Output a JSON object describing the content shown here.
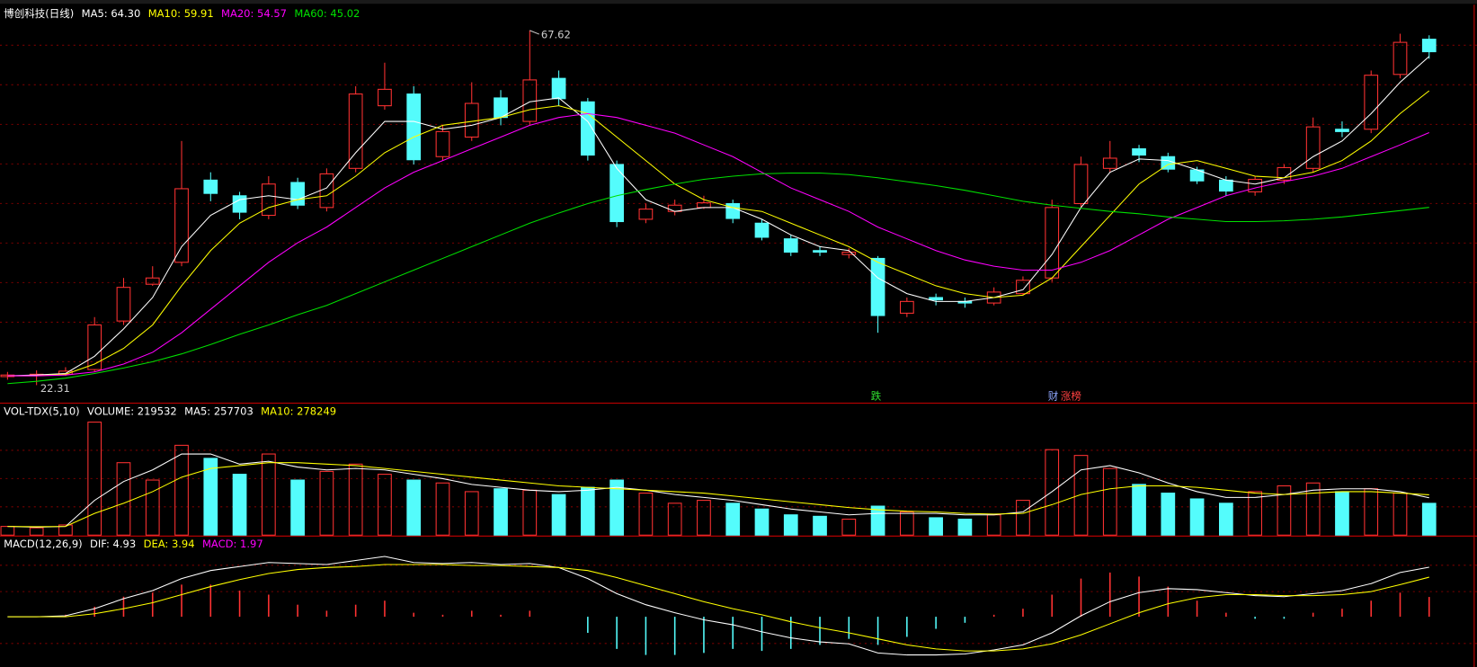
{
  "chart_data": [
    {
      "type": "candlestick",
      "title": "博创科技(日线)",
      "open": [
        23.4,
        23.6,
        23.7,
        24.3,
        30.5,
        35.2,
        38.0,
        48.5,
        46.5,
        44.0,
        48.2,
        45.0,
        50.0,
        58.0,
        59.5,
        51.5,
        54.0,
        59.0,
        56.0,
        61.5,
        58.5,
        50.5,
        43.5,
        44.5,
        45.0,
        45.5,
        43.0,
        41.0,
        39.5,
        39.0,
        38.5,
        31.5,
        33.5,
        33.0,
        32.8,
        34.0,
        36.0,
        45.5,
        50.0,
        52.5,
        51.5,
        49.8,
        48.5,
        47.0,
        48.5,
        50.0,
        55.0,
        55.0,
        62.0,
        66.5
      ],
      "high": [
        24.0,
        24.2,
        24.6,
        31.0,
        36.0,
        37.5,
        53.5,
        49.5,
        47.0,
        49.0,
        48.8,
        50.0,
        60.5,
        63.5,
        60.5,
        55.5,
        61.0,
        60.0,
        67.62,
        62.5,
        59.0,
        51.0,
        45.5,
        46.0,
        46.5,
        46.0,
        43.5,
        41.5,
        40.0,
        39.8,
        38.8,
        33.5,
        34.0,
        33.5,
        34.8,
        36.2,
        46.0,
        51.5,
        53.5,
        53.0,
        52.0,
        50.2,
        49.0,
        49.0,
        50.5,
        56.5,
        56.0,
        62.5,
        67.2,
        67.0
      ],
      "low": [
        23.0,
        22.31,
        23.5,
        24.0,
        30.0,
        35.0,
        37.5,
        45.8,
        43.5,
        43.5,
        44.8,
        44.5,
        49.5,
        57.5,
        50.5,
        51.0,
        53.5,
        55.5,
        55.5,
        58.0,
        51.0,
        42.5,
        43.0,
        44.0,
        44.8,
        43.0,
        40.8,
        38.8,
        38.8,
        38.5,
        29.0,
        31.0,
        32.5,
        32.2,
        32.5,
        33.8,
        35.5,
        45.0,
        49.5,
        50.8,
        49.5,
        48.0,
        46.5,
        46.5,
        48.0,
        49.5,
        54.0,
        54.5,
        61.5,
        64.0
      ],
      "close": [
        23.6,
        23.7,
        24.1,
        30.0,
        34.8,
        36.0,
        47.4,
        46.8,
        44.4,
        48.0,
        45.3,
        49.3,
        59.5,
        60.1,
        51.1,
        54.7,
        58.3,
        56.5,
        61.3,
        58.9,
        51.7,
        43.2,
        44.8,
        45.3,
        45.6,
        43.6,
        41.2,
        39.3,
        39.3,
        39.3,
        31.2,
        33.0,
        33.2,
        32.8,
        34.2,
        35.7,
        45.0,
        50.5,
        51.3,
        51.7,
        49.9,
        48.4,
        47.1,
        48.6,
        50.1,
        55.3,
        54.7,
        61.9,
        66.1,
        64.9
      ],
      "up_color": "#ff3232",
      "down_color": "#54fcfc",
      "ylim": [
        20,
        68.5
      ],
      "series": [
        {
          "name": "MA5: 64.30",
          "color": "#ffffff",
          "values": [
            23.5,
            23.6,
            23.8,
            26,
            29.5,
            33.5,
            40,
            44,
            46,
            46.5,
            46,
            47.5,
            52,
            56,
            56,
            55,
            55.5,
            56.5,
            58.5,
            59,
            56,
            50,
            46,
            44.5,
            45,
            45,
            43.5,
            41.5,
            40,
            39.5,
            36,
            34,
            33,
            33,
            33.5,
            34.5,
            39,
            45,
            49.5,
            51.2,
            51,
            49.8,
            48.5,
            48,
            48.8,
            51.5,
            53.5,
            57,
            61,
            64.3
          ]
        },
        {
          "name": "MA10: 59.91",
          "color": "#ffff00",
          "values": [
            23.5,
            23.5,
            23.7,
            25,
            27,
            30,
            35,
            39.5,
            43,
            45,
            46,
            46.5,
            49,
            52,
            54,
            55.5,
            56,
            56.5,
            57.5,
            58,
            57,
            54,
            51,
            48,
            46,
            45,
            44.5,
            43,
            41.5,
            40,
            38,
            36.5,
            35,
            34,
            33.5,
            33.8,
            36,
            40,
            44,
            48,
            50.5,
            51,
            50,
            49,
            48.8,
            49.5,
            51,
            53.5,
            57,
            59.91
          ]
        },
        {
          "name": "MA20: 54.57",
          "color": "#ff00ff",
          "values": [
            23.5,
            23.5,
            23.6,
            24,
            25,
            26.5,
            29,
            32,
            35,
            38,
            40.5,
            42.5,
            45,
            47.5,
            49.5,
            51,
            52.5,
            54,
            55.5,
            56.5,
            57,
            56.5,
            55.5,
            54.5,
            53,
            51.5,
            49.5,
            47.5,
            46,
            44.5,
            42.5,
            41,
            39.5,
            38.3,
            37.5,
            37,
            37,
            38,
            39.5,
            41.5,
            43.5,
            45,
            46.5,
            47.5,
            48.3,
            49,
            50,
            51.5,
            53,
            54.57
          ]
        },
        {
          "name": "MA60: 45.02",
          "color": "#00e000",
          "values": [
            22.5,
            22.8,
            23.2,
            23.8,
            24.5,
            25.3,
            26.3,
            27.5,
            28.8,
            30,
            31.3,
            32.5,
            34,
            35.5,
            37,
            38.5,
            40,
            41.5,
            43,
            44.3,
            45.5,
            46.5,
            47.3,
            48,
            48.6,
            49,
            49.3,
            49.4,
            49.4,
            49.2,
            48.8,
            48.3,
            47.8,
            47.2,
            46.5,
            45.8,
            45.3,
            44.9,
            44.5,
            44.2,
            43.8,
            43.5,
            43.2,
            43.2,
            43.3,
            43.5,
            43.8,
            44.2,
            44.6,
            45.02
          ]
        }
      ]
    },
    {
      "type": "volume",
      "title": "VOL-TDX(5,10)",
      "name": "VOLUME: 219532",
      "color": "#ffffff",
      "values": [
        60000,
        50000,
        70000,
        780000,
        500000,
        380000,
        620000,
        530000,
        420000,
        560000,
        380000,
        440000,
        490000,
        420000,
        380000,
        360000,
        300000,
        320000,
        310000,
        280000,
        330000,
        380000,
        290000,
        220000,
        240000,
        220000,
        180000,
        140000,
        130000,
        110000,
        200000,
        160000,
        120000,
        110000,
        140000,
        240000,
        590000,
        550000,
        460000,
        350000,
        290000,
        250000,
        220000,
        300000,
        340000,
        360000,
        300000,
        320000,
        290000,
        219532
      ],
      "ylim": [
        0,
        800000
      ],
      "series": [
        {
          "name": "MA5: 257703",
          "color": "#ffffff",
          "values": [
            60000,
            55000,
            60000,
            240000,
            370000,
            450000,
            560000,
            560000,
            490000,
            510000,
            470000,
            450000,
            460000,
            450000,
            420000,
            390000,
            350000,
            330000,
            310000,
            300000,
            310000,
            330000,
            310000,
            280000,
            260000,
            240000,
            210000,
            180000,
            160000,
            140000,
            150000,
            150000,
            150000,
            140000,
            140000,
            160000,
            300000,
            450000,
            480000,
            430000,
            360000,
            300000,
            260000,
            260000,
            280000,
            310000,
            320000,
            320000,
            300000,
            257703
          ]
        },
        {
          "name": "MA10: 278249",
          "color": "#ffff00",
          "values": [
            60000,
            58000,
            60000,
            150000,
            220000,
            300000,
            400000,
            460000,
            480000,
            500000,
            500000,
            490000,
            480000,
            460000,
            440000,
            420000,
            400000,
            380000,
            360000,
            340000,
            330000,
            320000,
            310000,
            300000,
            290000,
            270000,
            250000,
            230000,
            210000,
            190000,
            175000,
            165000,
            160000,
            150000,
            145000,
            150000,
            210000,
            280000,
            320000,
            340000,
            340000,
            330000,
            310000,
            290000,
            280000,
            290000,
            300000,
            300000,
            290000,
            278249
          ]
        }
      ]
    },
    {
      "type": "macd",
      "title": "MACD(12,26,9)",
      "ylim": [
        -5,
        7
      ],
      "series": [
        {
          "name": "DIF: 4.93",
          "color": "#ffffff",
          "values": [
            0,
            0,
            0.1,
            0.8,
            1.8,
            2.6,
            3.8,
            4.6,
            5,
            5.4,
            5.3,
            5.2,
            5.6,
            6,
            5.4,
            5.3,
            5.4,
            5.2,
            5.3,
            4.9,
            3.8,
            2.3,
            1.2,
            0.4,
            -0.3,
            -0.8,
            -1.5,
            -2.1,
            -2.5,
            -2.7,
            -3.6,
            -3.8,
            -3.8,
            -3.7,
            -3.3,
            -2.8,
            -1.6,
            0.1,
            1.5,
            2.4,
            2.8,
            2.7,
            2.4,
            2.1,
            2,
            2.3,
            2.6,
            3.3,
            4.4,
            4.93
          ]
        },
        {
          "name": "DEA: 3.94",
          "color": "#ffff00",
          "values": [
            0,
            0,
            0,
            0.3,
            0.8,
            1.4,
            2.2,
            3,
            3.7,
            4.3,
            4.7,
            4.9,
            5,
            5.2,
            5.2,
            5.2,
            5.1,
            5.1,
            5,
            4.9,
            4.6,
            3.9,
            3.1,
            2.3,
            1.5,
            0.8,
            0.2,
            -0.5,
            -1.1,
            -1.6,
            -2.2,
            -2.8,
            -3.2,
            -3.4,
            -3.4,
            -3.2,
            -2.7,
            -1.8,
            -0.7,
            0.4,
            1.3,
            1.9,
            2.2,
            2.2,
            2.1,
            2.1,
            2.2,
            2.5,
            3.2,
            3.94
          ]
        }
      ],
      "histogram": {
        "name": "MACD: 1.97",
        "color": "#ff00ff",
        "up_color": "#ff3232",
        "down_color": "#54fcfc",
        "values": [
          0,
          0,
          0.2,
          1,
          2,
          2.4,
          3.2,
          3.2,
          2.6,
          2.2,
          1.2,
          0.6,
          1.2,
          1.6,
          0.4,
          0.2,
          0.6,
          0.2,
          0.6,
          0,
          -1.6,
          -3.2,
          -3.8,
          -3.8,
          -3.6,
          -3.2,
          -3.4,
          -3.2,
          -2.8,
          -2.2,
          -2.8,
          -2,
          -1.2,
          -0.6,
          0.2,
          0.8,
          2.2,
          3.8,
          4.4,
          4,
          3,
          1.6,
          0.4,
          -0.2,
          -0.2,
          0.4,
          0.8,
          1.6,
          2.4,
          1.97
        ]
      }
    }
  ],
  "annotations": [
    "跌",
    "财",
    "涨榜"
  ]
}
